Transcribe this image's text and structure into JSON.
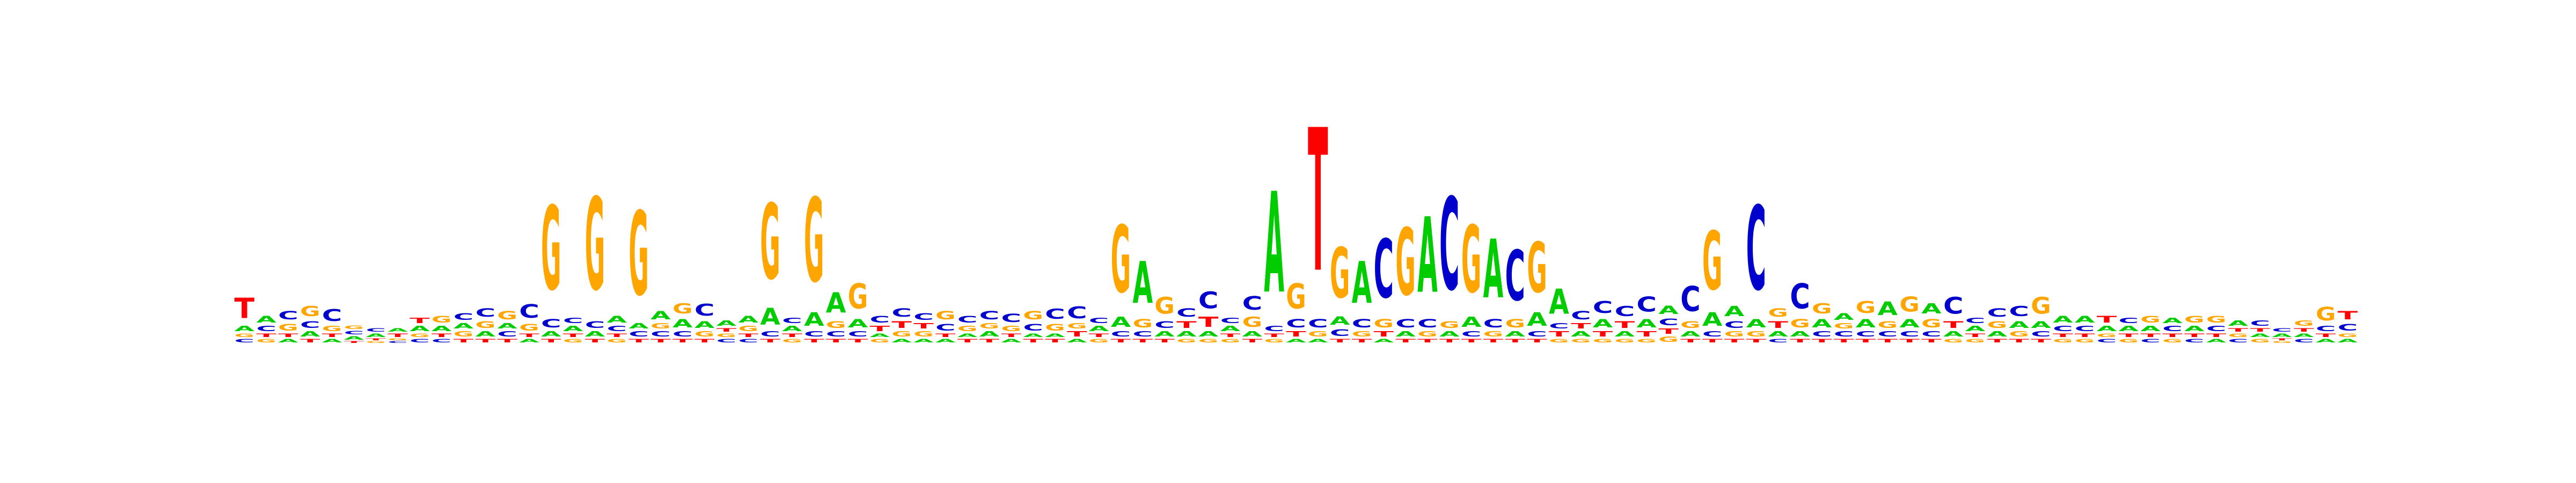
{
  "chart_data": {
    "type": "sequence-logo",
    "alphabet": [
      "A",
      "C",
      "G",
      "T"
    ],
    "colors": {
      "A": "#00cc00",
      "C": "#0000cc",
      "G": "#ffa500",
      "T": "#ff0000"
    },
    "ymax": 2.0,
    "positions": [
      {
        "T": 0.12,
        "A": 0.03,
        "C": 0.02,
        "G": 0.02
      },
      {
        "A": 0.04,
        "C": 0.03,
        "G": 0.02,
        "T": 0.02
      },
      {
        "C": 0.05,
        "G": 0.04,
        "A": 0.02,
        "T": 0.02
      },
      {
        "G": 0.06,
        "C": 0.04,
        "A": 0.03,
        "T": 0.02
      },
      {
        "C": 0.07,
        "G": 0.03,
        "A": 0.02,
        "T": 0.02
      },
      {
        "A": 0.02,
        "C": 0.02,
        "G": 0.02,
        "T": 0.01
      },
      {
        "A": 0.02,
        "C": 0.02,
        "G": 0.01,
        "T": 0.01
      },
      {
        "T": 0.02,
        "A": 0.02,
        "C": 0.01,
        "G": 0.01
      },
      {
        "A": 0.03,
        "T": 0.03,
        "C": 0.02,
        "G": 0.02
      },
      {
        "G": 0.04,
        "A": 0.03,
        "C": 0.02,
        "T": 0.02
      },
      {
        "C": 0.04,
        "G": 0.03,
        "A": 0.03,
        "T": 0.02
      },
      {
        "C": 0.05,
        "G": 0.04,
        "A": 0.03,
        "T": 0.02
      },
      {
        "G": 0.05,
        "C": 0.03,
        "A": 0.03,
        "T": 0.02
      },
      {
        "C": 0.08,
        "G": 0.04,
        "A": 0.02,
        "T": 0.02
      },
      {
        "G": 0.5,
        "C": 0.05,
        "A": 0.03,
        "T": 0.02
      },
      {
        "A": 0.03,
        "C": 0.03,
        "G": 0.02,
        "T": 0.02
      },
      {
        "G": 0.55,
        "C": 0.04,
        "A": 0.03,
        "T": 0.02
      },
      {
        "A": 0.04,
        "C": 0.03,
        "G": 0.02,
        "T": 0.02
      },
      {
        "G": 0.5,
        "C": 0.03,
        "A": 0.03,
        "T": 0.02
      },
      {
        "A": 0.05,
        "C": 0.03,
        "G": 0.03,
        "T": 0.02
      },
      {
        "G": 0.06,
        "A": 0.05,
        "C": 0.03,
        "T": 0.02
      },
      {
        "C": 0.07,
        "A": 0.04,
        "G": 0.03,
        "T": 0.02
      },
      {
        "A": 0.03,
        "C": 0.02,
        "G": 0.02,
        "T": 0.02
      },
      {
        "A": 0.04,
        "G": 0.03,
        "C": 0.02,
        "T": 0.02
      },
      {
        "G": 0.45,
        "A": 0.1,
        "C": 0.03,
        "T": 0.02
      },
      {
        "A": 0.03,
        "C": 0.03,
        "G": 0.02,
        "T": 0.02
      },
      {
        "G": 0.5,
        "A": 0.08,
        "C": 0.03,
        "T": 0.02
      },
      {
        "A": 0.12,
        "G": 0.04,
        "C": 0.03,
        "T": 0.02
      },
      {
        "G": 0.15,
        "A": 0.05,
        "C": 0.03,
        "T": 0.02
      },
      {
        "C": 0.04,
        "T": 0.03,
        "G": 0.02,
        "A": 0.02
      },
      {
        "C": 0.05,
        "T": 0.04,
        "G": 0.03,
        "A": 0.02
      },
      {
        "C": 0.04,
        "G": 0.03,
        "T": 0.03,
        "A": 0.02
      },
      {
        "G": 0.05,
        "C": 0.04,
        "A": 0.02,
        "T": 0.02
      },
      {
        "C": 0.04,
        "G": 0.03,
        "T": 0.02,
        "A": 0.02
      },
      {
        "C": 0.05,
        "A": 0.03,
        "G": 0.03,
        "T": 0.02
      },
      {
        "C": 0.05,
        "G": 0.03,
        "A": 0.02,
        "T": 0.02
      },
      {
        "G": 0.05,
        "C": 0.04,
        "T": 0.02,
        "A": 0.02
      },
      {
        "C": 0.06,
        "G": 0.04,
        "T": 0.02,
        "A": 0.02
      },
      {
        "C": 0.07,
        "T": 0.03,
        "G": 0.03,
        "A": 0.02
      },
      {
        "A": 0.03,
        "C": 0.03,
        "G": 0.02,
        "T": 0.02
      },
      {
        "G": 0.4,
        "A": 0.06,
        "C": 0.03,
        "T": 0.02
      },
      {
        "A": 0.25,
        "G": 0.05,
        "C": 0.03,
        "T": 0.02
      },
      {
        "G": 0.1,
        "C": 0.04,
        "A": 0.03,
        "T": 0.02
      },
      {
        "C": 0.05,
        "T": 0.04,
        "A": 0.03,
        "G": 0.02
      },
      {
        "C": 0.1,
        "T": 0.06,
        "A": 0.03,
        "G": 0.02
      },
      {
        "A": 0.03,
        "C": 0.03,
        "G": 0.02,
        "T": 0.02
      },
      {
        "C": 0.08,
        "G": 0.06,
        "A": 0.03,
        "T": 0.02
      },
      {
        "A": 0.6,
        "C": 0.03,
        "G": 0.02,
        "T": 0.02
      },
      {
        "G": 0.15,
        "C": 0.05,
        "T": 0.03,
        "A": 0.02
      },
      {
        "T": 0.85,
        "C": 0.05,
        "G": 0.03,
        "A": 0.02
      },
      {
        "G": 0.3,
        "A": 0.05,
        "C": 0.04,
        "T": 0.02
      },
      {
        "A": 0.25,
        "C": 0.05,
        "G": 0.03,
        "T": 0.02
      },
      {
        "C": 0.35,
        "G": 0.05,
        "T": 0.03,
        "A": 0.02
      },
      {
        "G": 0.4,
        "C": 0.05,
        "A": 0.03,
        "T": 0.02
      },
      {
        "A": 0.45,
        "C": 0.05,
        "G": 0.03,
        "T": 0.02
      },
      {
        "C": 0.55,
        "G": 0.04,
        "A": 0.03,
        "T": 0.02
      },
      {
        "G": 0.4,
        "A": 0.06,
        "C": 0.03,
        "T": 0.02
      },
      {
        "A": 0.35,
        "C": 0.05,
        "G": 0.03,
        "T": 0.02
      },
      {
        "C": 0.3,
        "G": 0.05,
        "A": 0.03,
        "T": 0.02
      },
      {
        "G": 0.3,
        "A": 0.08,
        "C": 0.03,
        "T": 0.02
      },
      {
        "A": 0.15,
        "T": 0.03,
        "C": 0.03,
        "G": 0.02
      },
      {
        "C": 0.05,
        "A": 0.03,
        "T": 0.03,
        "G": 0.02
      },
      {
        "C": 0.07,
        "A": 0.05,
        "T": 0.03,
        "G": 0.02
      },
      {
        "C": 0.06,
        "T": 0.04,
        "A": 0.03,
        "G": 0.02
      },
      {
        "C": 0.09,
        "A": 0.05,
        "T": 0.03,
        "G": 0.02
      },
      {
        "A": 0.05,
        "C": 0.04,
        "G": 0.03,
        "T": 0.03
      },
      {
        "C": 0.15,
        "G": 0.04,
        "A": 0.03,
        "T": 0.02
      },
      {
        "G": 0.35,
        "A": 0.08,
        "C": 0.03,
        "T": 0.02
      },
      {
        "A": 0.06,
        "C": 0.04,
        "G": 0.03,
        "T": 0.02
      },
      {
        "C": 0.5,
        "A": 0.05,
        "G": 0.03,
        "T": 0.02
      },
      {
        "G": 0.05,
        "T": 0.04,
        "A": 0.03,
        "C": 0.02
      },
      {
        "C": 0.15,
        "G": 0.05,
        "A": 0.03,
        "T": 0.02
      },
      {
        "G": 0.06,
        "A": 0.05,
        "C": 0.03,
        "T": 0.02
      },
      {
        "A": 0.04,
        "C": 0.03,
        "G": 0.03,
        "T": 0.02
      },
      {
        "G": 0.07,
        "A": 0.05,
        "C": 0.03,
        "T": 0.02
      },
      {
        "A": 0.08,
        "G": 0.04,
        "C": 0.03,
        "T": 0.02
      },
      {
        "G": 0.09,
        "A": 0.05,
        "C": 0.03,
        "T": 0.02
      },
      {
        "A": 0.06,
        "G": 0.05,
        "C": 0.03,
        "T": 0.02
      },
      {
        "C": 0.1,
        "T": 0.04,
        "A": 0.03,
        "G": 0.02
      },
      {
        "A": 0.03,
        "C": 0.03,
        "G": 0.02,
        "T": 0.02
      },
      {
        "C": 0.05,
        "G": 0.04,
        "A": 0.03,
        "T": 0.02
      },
      {
        "C": 0.06,
        "A": 0.04,
        "G": 0.03,
        "T": 0.02
      },
      {
        "G": 0.1,
        "A": 0.04,
        "C": 0.03,
        "T": 0.02
      },
      {
        "A": 0.04,
        "C": 0.03,
        "G": 0.02,
        "T": 0.02
      },
      {
        "A": 0.04,
        "C": 0.03,
        "G": 0.02,
        "T": 0.02
      },
      {
        "T": 0.04,
        "A": 0.03,
        "C": 0.02,
        "G": 0.02
      },
      {
        "A": 0.03,
        "C": 0.03,
        "G": 0.02,
        "T": 0.02
      },
      {
        "G": 0.04,
        "A": 0.03,
        "C": 0.02,
        "T": 0.02
      },
      {
        "C": 0.03,
        "A": 0.03,
        "G": 0.02,
        "T": 0.02
      },
      {
        "G": 0.04,
        "A": 0.03,
        "C": 0.02,
        "T": 0.02
      },
      {
        "G": 0.04,
        "C": 0.03,
        "A": 0.02,
        "T": 0.02
      },
      {
        "A": 0.03,
        "C": 0.02,
        "G": 0.02,
        "T": 0.02
      },
      {
        "C": 0.03,
        "G": 0.02,
        "A": 0.02,
        "T": 0.02
      },
      {
        "A": 0.02,
        "C": 0.02,
        "G": 0.01,
        "T": 0.01
      },
      {
        "G": 0.03,
        "C": 0.02,
        "A": 0.02,
        "T": 0.02
      },
      {
        "G": 0.08,
        "C": 0.03,
        "A": 0.02,
        "T": 0.02
      },
      {
        "T": 0.05,
        "C": 0.04,
        "A": 0.02,
        "G": 0.02
      }
    ]
  }
}
